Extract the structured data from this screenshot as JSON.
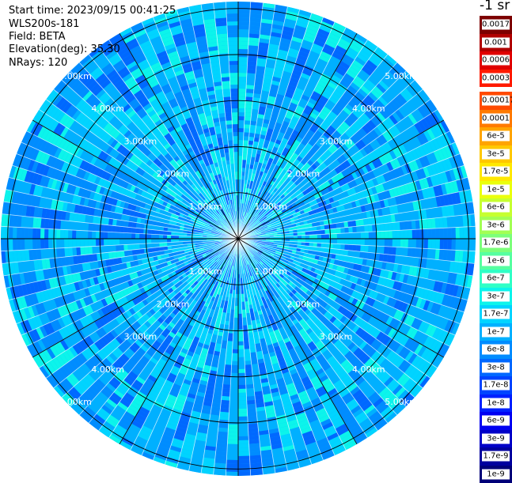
{
  "info": {
    "start_time": "Start time: 2023/09/15 00:41:25",
    "instrument": "WLS200s-181",
    "field": "Field: BETA",
    "elevation": "Elevation(deg): 35.30",
    "nrays": "NRays: 120"
  },
  "colorbar": {
    "unit_label": "-1 sr",
    "bands": [
      {
        "label": "0.0017",
        "color": "#7d0000"
      },
      {
        "label": "0.001",
        "color": "#b00000"
      },
      {
        "label": "0.0006",
        "color": "#e00000"
      },
      {
        "label": "0.0003",
        "color": "#ff1a00"
      },
      {
        "label": "0.00017",
        "color": "#ff4a00"
      },
      {
        "label": "0.0001",
        "color": "#ff7a00"
      },
      {
        "label": "6e-5",
        "color": "#ffa400"
      },
      {
        "label": "3e-5",
        "color": "#ffc800"
      },
      {
        "label": "1.7e-5",
        "color": "#ffe800"
      },
      {
        "label": "1e-5",
        "color": "#eaff0c"
      },
      {
        "label": "6e-6",
        "color": "#c6ff30"
      },
      {
        "label": "3e-6",
        "color": "#a2ff54"
      },
      {
        "label": "1.7e-6",
        "color": "#7cff7a"
      },
      {
        "label": "1e-6",
        "color": "#56ffa0"
      },
      {
        "label": "6e-7",
        "color": "#30ffc6"
      },
      {
        "label": "3e-7",
        "color": "#0cf4eb"
      },
      {
        "label": "1.7e-7",
        "color": "#00d4ff"
      },
      {
        "label": "1e-7",
        "color": "#00b0ff"
      },
      {
        "label": "6e-8",
        "color": "#008cff"
      },
      {
        "label": "3e-8",
        "color": "#0068ff"
      },
      {
        "label": "1.7e-8",
        "color": "#0044ff"
      },
      {
        "label": "1e-8",
        "color": "#0020ff"
      },
      {
        "label": "6e-9",
        "color": "#0000f2"
      },
      {
        "label": "3e-9",
        "color": "#0000c8"
      },
      {
        "label": "1.7e-9",
        "color": "#00009e"
      },
      {
        "label": "1e-9",
        "color": "#000078"
      }
    ]
  },
  "chart_data": {
    "type": "heatmap",
    "title": "",
    "projection": "polar (PPI)",
    "nrays": 120,
    "range_rings": [
      "1.00km",
      "2.00km",
      "3.00km",
      "4.00km",
      "5.00km"
    ],
    "range_rings_km": [
      1,
      2,
      3,
      4,
      5
    ],
    "max_range_km": 5.15,
    "spokes_deg": [
      0,
      30,
      60,
      90,
      120,
      150,
      180,
      210,
      240,
      270,
      300,
      330
    ],
    "dominant_values": "1.7e-7 to 3e-8",
    "colors": {
      "cyan": "#00d4ff",
      "mid_blue": "#00b0ff",
      "blue": "#008cff",
      "deep_blue": "#0068ff",
      "aqua": "#0cf4eb"
    }
  }
}
